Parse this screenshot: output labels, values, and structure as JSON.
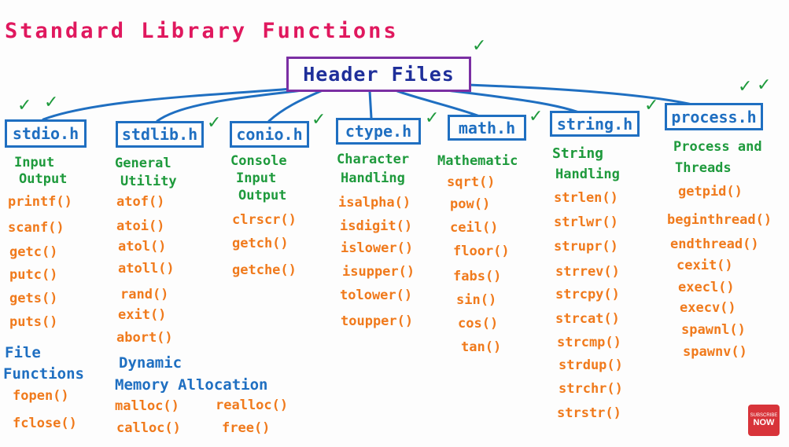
{
  "title": "Standard Library Functions",
  "header": "Header Files",
  "columns": [
    {
      "name": "stdio.h",
      "description": [
        "Input",
        "Output"
      ],
      "functions": [
        "printf()",
        "scanf()",
        "getc()",
        "putc()",
        "gets()",
        "puts()"
      ]
    },
    {
      "name": "stdlib.h",
      "description": [
        "General",
        "Utility"
      ],
      "functions": [
        "atof()",
        "atoi()",
        "atol()",
        "atoll()",
        "rand()",
        "exit()",
        "abort()"
      ]
    },
    {
      "name": "conio.h",
      "description": [
        "Console",
        "Input",
        "Output"
      ],
      "functions": [
        "clrscr()",
        "getch()",
        "getche()"
      ]
    },
    {
      "name": "ctype.h",
      "description": [
        "Character",
        "Handling"
      ],
      "functions": [
        "isalpha()",
        "isdigit()",
        "islower()",
        "isupper()",
        "tolower()",
        "toupper()"
      ]
    },
    {
      "name": "math.h",
      "description": [
        "Mathematic"
      ],
      "functions": [
        "sqrt()",
        "pow()",
        "ceil()",
        "floor()",
        "fabs()",
        "sin()",
        "cos()",
        "tan()"
      ]
    },
    {
      "name": "string.h",
      "description": [
        "String",
        "Handling"
      ],
      "functions": [
        "strlen()",
        "strlwr()",
        "strupr()",
        "strrev()",
        "strcpy()",
        "strcat()",
        "strcmp()",
        "strdup()",
        "strchr()",
        "strstr()"
      ]
    },
    {
      "name": "process.h",
      "description": [
        "Process and",
        "Threads"
      ],
      "functions": [
        "getpid()",
        "beginthread()",
        "endthread()",
        "cexit()",
        "execl()",
        "execv()",
        "spawnl()",
        "spawnv()"
      ]
    }
  ],
  "file_functions": {
    "label": [
      "File",
      "Functions"
    ],
    "functions": [
      "fopen()",
      "fclose()"
    ]
  },
  "dynamic_memory": {
    "label": [
      "Dynamic",
      "Memory Allocation"
    ],
    "functions": [
      "malloc()",
      "realloc()",
      "calloc()",
      "free()"
    ]
  },
  "check_mark": "✓",
  "badge": {
    "top": "SUBSCRIBE",
    "bottom": "NOW"
  },
  "colors": {
    "title": "#e0185e",
    "box": "#1f6fc1",
    "header_border": "#7b2fa3",
    "description": "#1e9a3c",
    "function": "#f07a1c"
  }
}
